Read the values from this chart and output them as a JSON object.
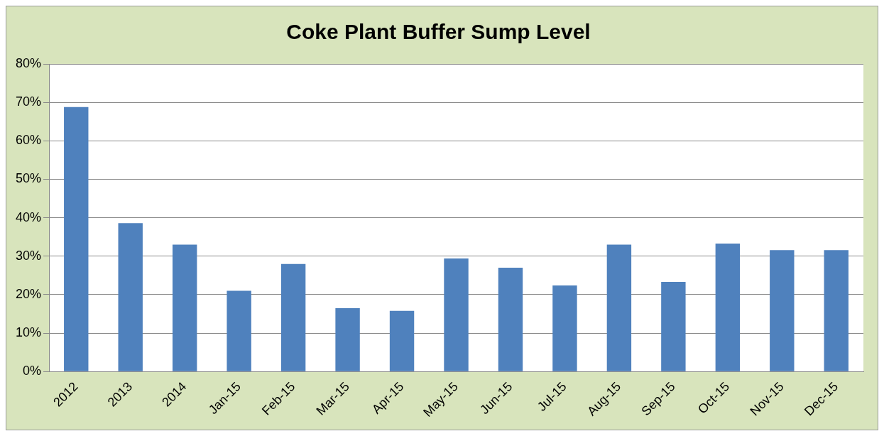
{
  "chart_data": {
    "type": "bar",
    "title": "Coke Plant Buffer Sump Level",
    "categories": [
      "2012",
      "2013",
      "2014",
      "Jan-15",
      "Feb-15",
      "Mar-15",
      "Apr-15",
      "May-15",
      "Jun-15",
      "Jul-15",
      "Aug-15",
      "Sep-15",
      "Oct-15",
      "Nov-15",
      "Dec-15"
    ],
    "values": [
      68.8,
      38.6,
      33,
      21,
      28,
      16.5,
      15.8,
      29.4,
      27,
      22.4,
      33,
      23.3,
      33.3,
      31.6,
      31.6
    ],
    "color": "#4f81bd",
    "ylim": [
      0,
      80
    ],
    "yticks": [
      {
        "value": 0,
        "label": "0%"
      },
      {
        "value": 10,
        "label": "10%"
      },
      {
        "value": 20,
        "label": "20%"
      },
      {
        "value": 30,
        "label": "30%"
      },
      {
        "value": 40,
        "label": "40%"
      },
      {
        "value": 50,
        "label": "50%"
      },
      {
        "value": 60,
        "label": "60%"
      },
      {
        "value": 70,
        "label": "70%"
      },
      {
        "value": 80,
        "label": "80%"
      }
    ],
    "grid": "y",
    "legend": false
  }
}
